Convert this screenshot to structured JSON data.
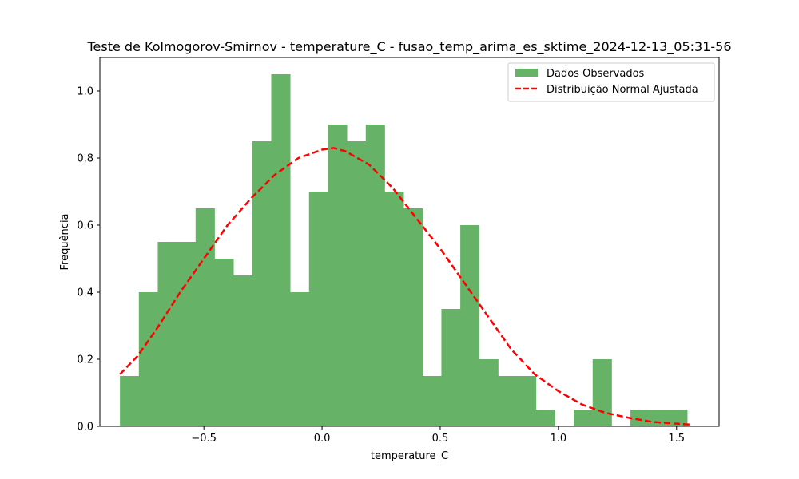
{
  "chart_data": {
    "type": "bar",
    "title": "Teste de Kolmogorov-Smirnov - temperature_C - fusao_temp_arima_es_sktime_2024-12-13_05:31-56",
    "xlabel": "temperature_C",
    "ylabel": "Frequência",
    "xlim": [
      -0.94,
      1.68
    ],
    "ylim": [
      0,
      1.1
    ],
    "xticks": [
      -0.5,
      0.0,
      0.5,
      1.0,
      1.5
    ],
    "xtick_labels": [
      "−0.5",
      "0.0",
      "0.5",
      "1.0",
      "1.5"
    ],
    "yticks": [
      0.0,
      0.2,
      0.4,
      0.6,
      0.8,
      1.0
    ],
    "ytick_labels": [
      "0.0",
      "0.2",
      "0.4",
      "0.6",
      "0.8",
      "1.0"
    ],
    "grid": false,
    "legend_position": "upper-right",
    "histogram": {
      "name": "Dados Observados",
      "color": "#66b266",
      "bin_start": -0.855,
      "bin_width": 0.08,
      "values": [
        0.15,
        0.4,
        0.55,
        0.55,
        0.65,
        0.5,
        0.45,
        0.85,
        1.05,
        0.4,
        0.7,
        0.9,
        0.85,
        0.9,
        0.7,
        0.65,
        0.15,
        0.35,
        0.6,
        0.2,
        0.15,
        0.15,
        0.05,
        0.0,
        0.05,
        0.2,
        0.0,
        0.05,
        0.05,
        0.05
      ]
    },
    "fit": {
      "name": "Distribuição Normal Ajustada",
      "color": "#ff0000",
      "style": "dashed",
      "points": [
        [
          -0.855,
          0.155
        ],
        [
          -0.78,
          0.21
        ],
        [
          -0.7,
          0.29
        ],
        [
          -0.6,
          0.4
        ],
        [
          -0.5,
          0.5
        ],
        [
          -0.4,
          0.6
        ],
        [
          -0.3,
          0.68
        ],
        [
          -0.2,
          0.75
        ],
        [
          -0.1,
          0.8
        ],
        [
          0.0,
          0.825
        ],
        [
          0.05,
          0.83
        ],
        [
          0.1,
          0.82
        ],
        [
          0.2,
          0.78
        ],
        [
          0.3,
          0.71
        ],
        [
          0.4,
          0.62
        ],
        [
          0.5,
          0.53
        ],
        [
          0.6,
          0.43
        ],
        [
          0.7,
          0.33
        ],
        [
          0.8,
          0.23
        ],
        [
          0.9,
          0.155
        ],
        [
          1.0,
          0.105
        ],
        [
          1.1,
          0.065
        ],
        [
          1.2,
          0.04
        ],
        [
          1.3,
          0.025
        ],
        [
          1.4,
          0.013
        ],
        [
          1.5,
          0.008
        ],
        [
          1.56,
          0.005
        ]
      ]
    }
  }
}
